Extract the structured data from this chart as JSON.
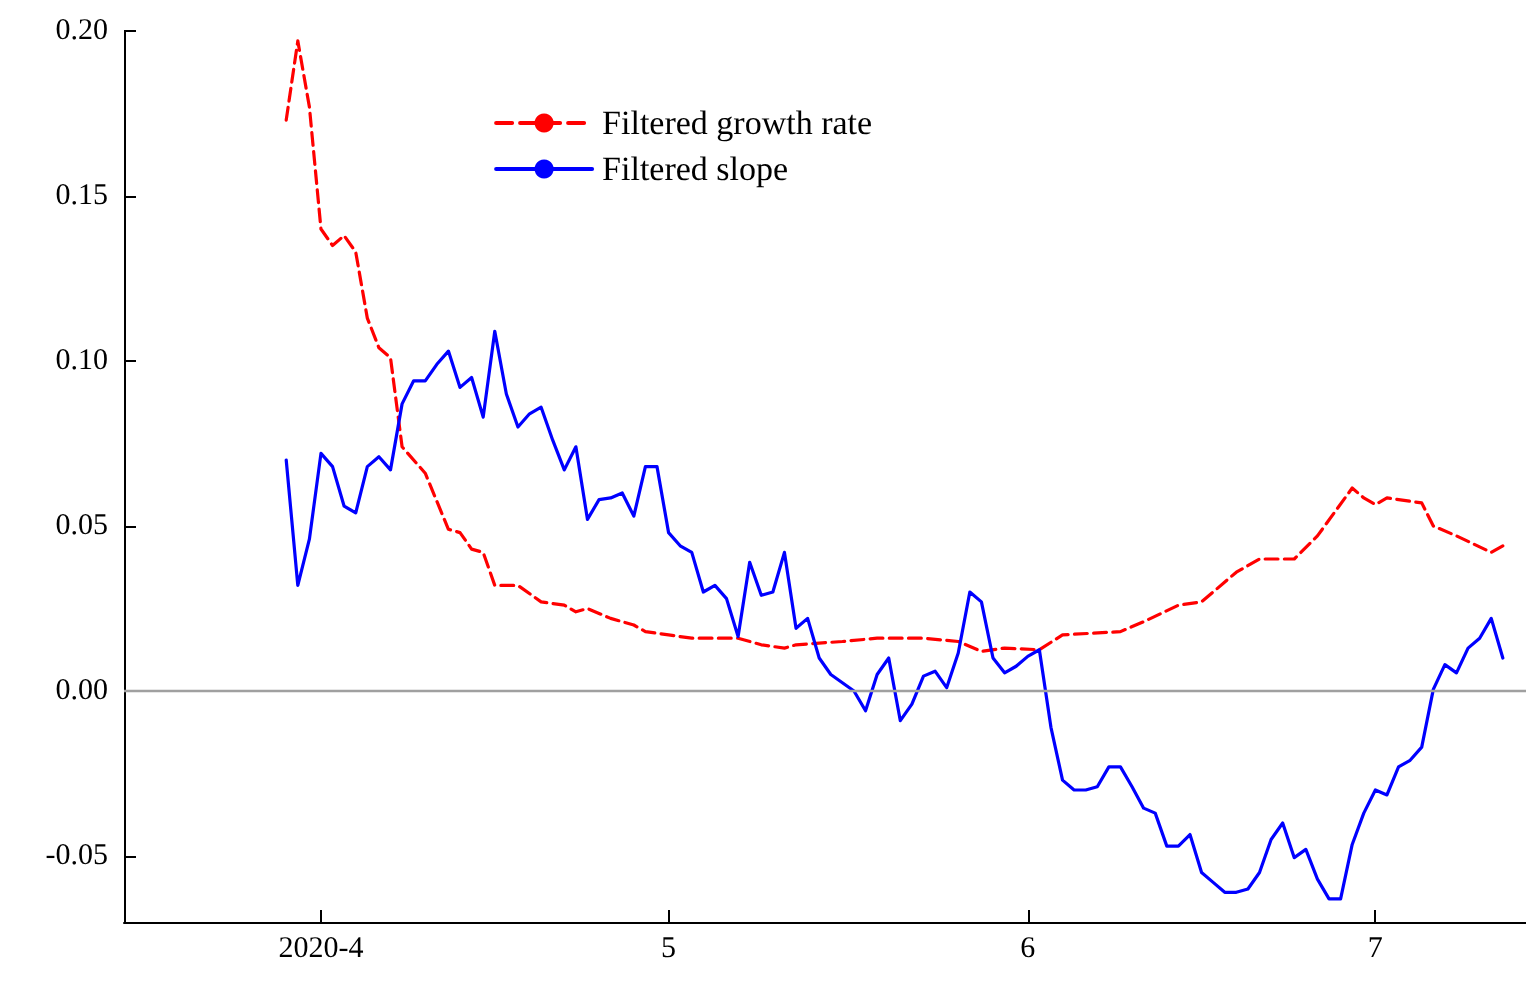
{
  "chart_data": {
    "type": "line",
    "xlim": [
      "2020-03-15",
      "2020-07-14"
    ],
    "xticks": [
      {
        "value": "2020-04-01",
        "label": "2020-4"
      },
      {
        "value": "2020-05-01",
        "label": "5"
      },
      {
        "value": "2020-06-01",
        "label": "6"
      },
      {
        "value": "2020-07-01",
        "label": "7"
      }
    ],
    "ylim": [
      -0.07,
      0.2
    ],
    "yticks": [
      {
        "value": -0.05,
        "label": "-0.05"
      },
      {
        "value": 0,
        "label": "0.00"
      },
      {
        "value": 0.05,
        "label": "0.05"
      },
      {
        "value": 0.1,
        "label": "0.10"
      },
      {
        "value": 0.15,
        "label": "0.15"
      },
      {
        "value": 0.2,
        "label": "0.20"
      }
    ],
    "grid": false,
    "legend": "top",
    "marker": "none",
    "ref_lines": [
      {
        "axis": "y",
        "value": 0,
        "color": "#a0a0a0",
        "line_style": "solid"
      }
    ],
    "series": [
      {
        "name": "Filtered growth rate",
        "color": "#ff0000",
        "line_style": "dashed",
        "x": [
          "2020-03-29",
          "2020-03-30",
          "2020-03-31",
          "2020-04-01",
          "2020-04-02",
          "2020-04-03",
          "2020-04-04",
          "2020-04-05",
          "2020-04-06",
          "2020-04-07",
          "2020-04-08",
          "2020-04-10",
          "2020-04-12",
          "2020-04-13",
          "2020-04-14",
          "2020-04-15",
          "2020-04-16",
          "2020-04-18",
          "2020-04-20",
          "2020-04-22",
          "2020-04-23",
          "2020-04-24",
          "2020-04-26",
          "2020-04-28",
          "2020-04-29",
          "2020-05-01",
          "2020-05-03",
          "2020-05-05",
          "2020-05-07",
          "2020-05-09",
          "2020-05-11",
          "2020-05-12",
          "2020-05-16",
          "2020-05-19",
          "2020-05-23",
          "2020-05-26",
          "2020-05-28",
          "2020-05-30",
          "2020-06-02",
          "2020-06-04",
          "2020-06-09",
          "2020-06-11",
          "2020-06-14",
          "2020-06-16",
          "2020-06-19",
          "2020-06-21",
          "2020-06-24",
          "2020-06-26",
          "2020-06-29",
          "2020-06-30",
          "2020-07-01",
          "2020-07-02",
          "2020-07-05",
          "2020-07-06",
          "2020-07-08",
          "2020-07-11",
          "2020-07-12"
        ],
        "values": [
          0.173,
          0.197,
          0.177,
          0.14,
          0.135,
          0.138,
          0.133,
          0.113,
          0.104,
          0.101,
          0.074,
          0.066,
          0.049,
          0.048,
          0.043,
          0.042,
          0.032,
          0.032,
          0.027,
          0.026,
          0.024,
          0.025,
          0.022,
          0.02,
          0.018,
          0.017,
          0.016,
          0.016,
          0.016,
          0.014,
          0.013,
          0.014,
          0.015,
          0.016,
          0.016,
          0.015,
          0.012,
          0.013,
          0.0125,
          0.017,
          0.018,
          0.021,
          0.026,
          0.027,
          0.036,
          0.04,
          0.04,
          0.047,
          0.0615,
          0.0585,
          0.0565,
          0.0585,
          0.057,
          0.05,
          0.047,
          0.042,
          0.044
        ]
      },
      {
        "name": "Filtered slope",
        "color": "#0000ff",
        "line_style": "solid",
        "x": [
          "2020-03-29",
          "2020-03-30",
          "2020-03-31",
          "2020-04-01",
          "2020-04-02",
          "2020-04-03",
          "2020-04-04",
          "2020-04-05",
          "2020-04-06",
          "2020-04-07",
          "2020-04-08",
          "2020-04-09",
          "2020-04-10",
          "2020-04-11",
          "2020-04-12",
          "2020-04-13",
          "2020-04-14",
          "2020-04-15",
          "2020-04-16",
          "2020-04-17",
          "2020-04-18",
          "2020-04-19",
          "2020-04-20",
          "2020-04-21",
          "2020-04-22",
          "2020-04-23",
          "2020-04-24",
          "2020-04-25",
          "2020-04-26",
          "2020-04-27",
          "2020-04-28",
          "2020-04-29",
          "2020-04-30",
          "2020-05-01",
          "2020-05-02",
          "2020-05-03",
          "2020-05-04",
          "2020-05-05",
          "2020-05-06",
          "2020-05-07",
          "2020-05-08",
          "2020-05-09",
          "2020-05-10",
          "2020-05-11",
          "2020-05-12",
          "2020-05-13",
          "2020-05-14",
          "2020-05-15",
          "2020-05-17",
          "2020-05-18",
          "2020-05-19",
          "2020-05-20",
          "2020-05-21",
          "2020-05-22",
          "2020-05-23",
          "2020-05-24",
          "2020-05-25",
          "2020-05-26",
          "2020-05-27",
          "2020-05-28",
          "2020-05-29",
          "2020-05-30",
          "2020-05-31",
          "2020-06-01",
          "2020-06-02",
          "2020-06-03",
          "2020-06-04",
          "2020-06-05",
          "2020-06-06",
          "2020-06-07",
          "2020-06-08",
          "2020-06-09",
          "2020-06-10",
          "2020-06-11",
          "2020-06-12",
          "2020-06-13",
          "2020-06-14",
          "2020-06-15",
          "2020-06-16",
          "2020-06-17",
          "2020-06-18",
          "2020-06-19",
          "2020-06-20",
          "2020-06-21",
          "2020-06-22",
          "2020-06-23",
          "2020-06-24",
          "2020-06-25",
          "2020-06-26",
          "2020-06-27",
          "2020-06-28",
          "2020-06-29",
          "2020-06-30",
          "2020-07-01",
          "2020-07-02",
          "2020-07-03",
          "2020-07-04",
          "2020-07-05",
          "2020-07-06",
          "2020-07-07",
          "2020-07-08",
          "2020-07-09",
          "2020-07-10",
          "2020-07-11",
          "2020-07-12"
        ],
        "values": [
          0.07,
          0.032,
          0.046,
          0.072,
          0.068,
          0.056,
          0.054,
          0.068,
          0.071,
          0.067,
          0.087,
          0.094,
          0.094,
          0.099,
          0.103,
          0.092,
          0.095,
          0.083,
          0.109,
          0.09,
          0.08,
          0.084,
          0.086,
          0.076,
          0.067,
          0.074,
          0.052,
          0.058,
          0.0585,
          0.06,
          0.053,
          0.068,
          0.068,
          0.048,
          0.044,
          0.042,
          0.03,
          0.032,
          0.028,
          0.0165,
          0.039,
          0.029,
          0.03,
          0.042,
          0.019,
          0.022,
          0.01,
          0.005,
          0.0,
          -0.006,
          0.005,
          0.01,
          -0.009,
          -0.004,
          0.0045,
          0.006,
          0.001,
          0.0115,
          0.03,
          0.027,
          0.01,
          0.0055,
          0.0075,
          0.0105,
          0.0125,
          -0.011,
          -0.027,
          -0.03,
          -0.03,
          -0.029,
          -0.023,
          -0.023,
          -0.029,
          -0.0355,
          -0.037,
          -0.047,
          -0.047,
          -0.0435,
          -0.055,
          -0.058,
          -0.061,
          -0.061,
          -0.06,
          -0.055,
          -0.045,
          -0.04,
          -0.0505,
          -0.048,
          -0.057,
          -0.063,
          -0.063,
          -0.0465,
          -0.037,
          -0.03,
          -0.0315,
          -0.023,
          -0.021,
          -0.017,
          0.0005,
          0.008,
          0.0055,
          0.013,
          0.016,
          0.022,
          0.01
        ]
      }
    ]
  }
}
